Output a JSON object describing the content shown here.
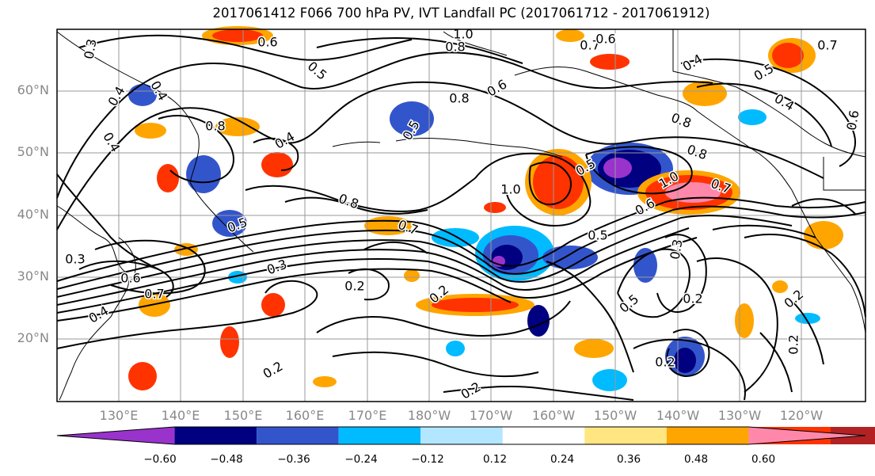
{
  "title": "2017061412 F066 700 hPa PV, IVT Landfall PC (2017061712 - 2017061912)",
  "lat_labels": [
    "60°N",
    "50°N",
    "40°N",
    "30°N",
    "20°N"
  ],
  "lon_labels": [
    "130°E",
    "140°E",
    "150°E",
    "160°E",
    "170°E",
    "180°W",
    "170°W",
    "160°W",
    "150°W",
    "140°W",
    "130°W",
    "120°W"
  ],
  "colorbar": {
    "ticks": [
      "−0.60",
      "−0.48",
      "−0.36",
      "−0.24",
      "−0.12",
      "0.12",
      "0.24",
      "0.36",
      "0.48",
      "0.60"
    ],
    "colors": [
      "#9933cc",
      "#000080",
      "#3355cc",
      "#00bbff",
      "#b3e6ff",
      "#ffffff",
      "#ffe680",
      "#ffa500",
      "#ff3300",
      "#b22222",
      "#ff88aa"
    ]
  },
  "contour_labels": [
    "0.3",
    "0.6",
    "1.0",
    "0.8",
    "0.7",
    "0.7",
    "0.4",
    "0.4",
    "0.5",
    "0.8",
    "0.6",
    "0.6",
    "0.4",
    "0.5",
    "0.6",
    "0.4",
    "0.8",
    "0.4",
    "0.5",
    "0.8",
    "0.8",
    "0.4",
    "1.0",
    "0.5",
    "1.0",
    "0.7",
    "0.8",
    "0.7",
    "0.6",
    "0.5",
    "0.5",
    "0.3",
    "0.3",
    "0.6",
    "0.2",
    "0.7",
    "0.2",
    "0.4",
    "0.2",
    "0.3",
    "0.5",
    "0.2",
    "0.2",
    "0.2",
    "0.2",
    "0.2"
  ]
}
